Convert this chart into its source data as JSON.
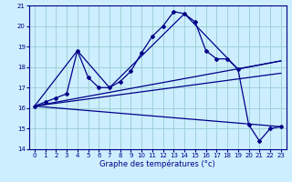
{
  "title": "Graphe des températures (°c)",
  "bg_color": "#cceeff",
  "grid_color": "#99cccc",
  "line_color": "#000088",
  "xlim": [
    -0.5,
    23.5
  ],
  "ylim": [
    14,
    21
  ],
  "yticks": [
    14,
    15,
    16,
    17,
    18,
    19,
    20,
    21
  ],
  "xticks": [
    0,
    1,
    2,
    3,
    4,
    5,
    6,
    7,
    8,
    9,
    10,
    11,
    12,
    13,
    14,
    15,
    16,
    17,
    18,
    19,
    20,
    21,
    22,
    23
  ],
  "curve_x": [
    0,
    1,
    2,
    3,
    4,
    5,
    6,
    7,
    8,
    9,
    10,
    11,
    12,
    13,
    14,
    15,
    16,
    17,
    18,
    19,
    20,
    21,
    22,
    23
  ],
  "curve_y": [
    16.1,
    16.3,
    16.5,
    16.7,
    18.8,
    17.5,
    17.0,
    17.0,
    17.3,
    17.8,
    18.7,
    19.5,
    20.0,
    20.7,
    20.6,
    20.2,
    18.8,
    18.4,
    18.4,
    17.9,
    15.2,
    14.4,
    15.0,
    15.1
  ],
  "line1_x": [
    0,
    23
  ],
  "line1_y": [
    16.1,
    15.1
  ],
  "line2_x": [
    0,
    4,
    7,
    14,
    19,
    23
  ],
  "line2_y": [
    16.1,
    18.8,
    17.0,
    20.6,
    17.9,
    18.3
  ],
  "line3_x": [
    0,
    23
  ],
  "line3_y": [
    16.1,
    18.3
  ],
  "line4_x": [
    0,
    23
  ],
  "line4_y": [
    16.1,
    17.7
  ]
}
